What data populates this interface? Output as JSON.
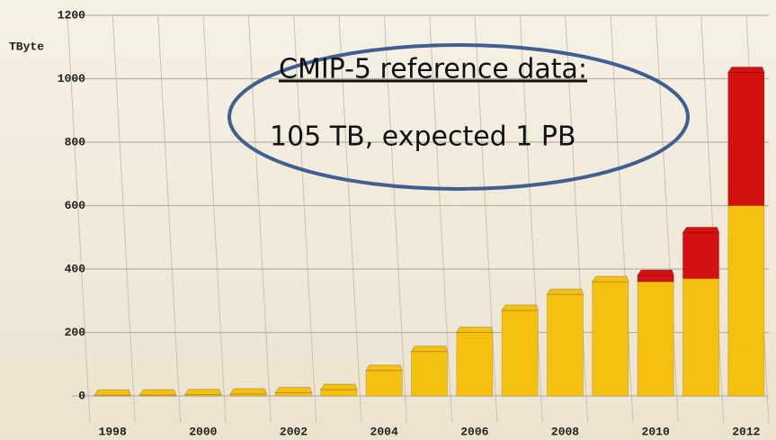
{
  "chart_data": {
    "type": "bar",
    "stacked": true,
    "y_label": "TByte",
    "annotations": [
      "CMIP-5 reference data:",
      "105 TB, expected 1 PB"
    ],
    "categories": [
      "1998",
      null,
      "2000",
      null,
      "2002",
      null,
      "2004",
      null,
      "2006",
      null,
      "2008",
      null,
      "2010",
      null,
      "2012"
    ],
    "series": [
      {
        "color": "#f5c010",
        "values": [
          2,
          3,
          4,
          6,
          10,
          20,
          80,
          140,
          200,
          270,
          320,
          360,
          360,
          370,
          600
        ]
      },
      {
        "color": "#d41010",
        "values": [
          0,
          0,
          0,
          0,
          0,
          0,
          0,
          0,
          0,
          0,
          0,
          0,
          20,
          145,
          420
        ]
      }
    ],
    "ylim": [
      0,
      1200
    ],
    "yticks": [
      0,
      200,
      400,
      600,
      800,
      1000,
      1200
    ],
    "grid": true
  }
}
